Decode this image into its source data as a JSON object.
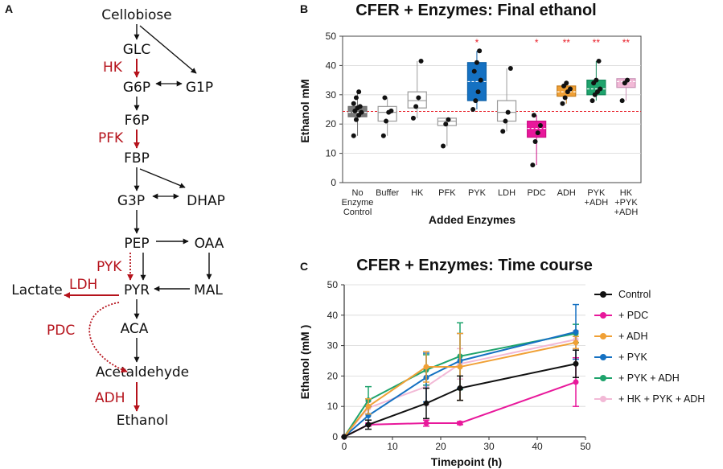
{
  "panels": {
    "a": "A",
    "b": "B",
    "c": "C"
  },
  "colors": {
    "red": "#b5121b",
    "black": "#111111",
    "sig": "#e8212a"
  },
  "pathway": {
    "nodes": {
      "cellobiose": "Cellobiose",
      "glc": "GLC",
      "g6p": "G6P",
      "g1p": "G1P",
      "f6p": "F6P",
      "fbp": "FBP",
      "g3p": "G3P",
      "dhap": "DHAP",
      "pep": "PEP",
      "oaa": "OAA",
      "pyr": "PYR",
      "mal": "MAL",
      "lactate": "Lactate",
      "aca": "ACA",
      "acetaldehyde": "Acetaldehyde",
      "ethanol": "Ethanol"
    },
    "enzymes": {
      "hk": "HK",
      "pfk": "PFK",
      "pyk": "PYK",
      "ldh": "LDH",
      "pdc": "PDC",
      "adh": "ADH"
    }
  },
  "chart_data": [
    {
      "type": "box",
      "title": "CFER + Enzymes: Final ethanol",
      "xlabel": "Added Enzymes",
      "ylabel": "Ethanol mM",
      "ylim": [
        0,
        50
      ],
      "yticks": [
        0,
        10,
        20,
        30,
        40,
        50
      ],
      "reference_line": 24.3,
      "categories": [
        {
          "label": [
            "No",
            "Enzyme",
            "Control"
          ],
          "color": "#6e6e6e",
          "fill": "#7a7a7a",
          "q1": 22.5,
          "median": 24,
          "q3": 26,
          "whisker": [
            16,
            31
          ],
          "points": [
            16,
            21.5,
            23,
            24,
            24.5,
            25.5,
            26,
            27,
            29,
            31
          ],
          "sig": ""
        },
        {
          "label": [
            "Buffer"
          ],
          "color": "#9a9a9a",
          "fill": "none",
          "q1": 21,
          "median": 24,
          "q3": 26,
          "whisker": [
            16,
            29
          ],
          "points": [
            16,
            21,
            24,
            24.5,
            29
          ],
          "sig": ""
        },
        {
          "label": [
            "HK"
          ],
          "color": "#9a9a9a",
          "fill": "none",
          "q1": 25.5,
          "median": 28,
          "q3": 31,
          "whisker": [
            22,
            41.5
          ],
          "points": [
            22,
            26,
            29,
            41.5
          ],
          "sig": ""
        },
        {
          "label": [
            "PFK"
          ],
          "color": "#9a9a9a",
          "fill": "none",
          "q1": 19.5,
          "median": 21,
          "q3": 22,
          "whisker": [
            12.5,
            22
          ],
          "points": [
            12.5,
            20,
            21.5
          ],
          "sig": ""
        },
        {
          "label": [
            "PYK"
          ],
          "color": "#0f62a8",
          "fill": "#1571c2",
          "q1": 28,
          "median": 34.5,
          "q3": 41,
          "whisker": [
            25,
            45
          ],
          "points": [
            25,
            28,
            31,
            35,
            38,
            41,
            45
          ],
          "sig": "*"
        },
        {
          "label": [
            "LDH"
          ],
          "color": "#9a9a9a",
          "fill": "none",
          "q1": 21,
          "median": 24,
          "q3": 28,
          "whisker": [
            17.5,
            39
          ],
          "points": [
            17.5,
            21,
            24,
            39
          ],
          "sig": ""
        },
        {
          "label": [
            "PDC"
          ],
          "color": "#cc0f85",
          "fill": "#e8189b",
          "q1": 15.5,
          "median": 18.5,
          "q3": 21,
          "whisker": [
            6,
            23
          ],
          "points": [
            6,
            14,
            17,
            19.5,
            23
          ],
          "sig": "*"
        },
        {
          "label": [
            "ADH"
          ],
          "color": "#c57d1c",
          "fill": "#f0a035",
          "q1": 29.5,
          "median": 31,
          "q3": 33,
          "whisker": [
            27,
            34
          ],
          "points": [
            27,
            29,
            31,
            32,
            33,
            34
          ],
          "sig": "**"
        },
        {
          "label": [
            "PYK",
            "+ADH"
          ],
          "color": "#14875a",
          "fill": "#1ea36c",
          "q1": 30,
          "median": 32,
          "q3": 35,
          "whisker": [
            28,
            41.5
          ],
          "points": [
            28,
            30,
            31,
            32,
            34,
            35,
            41.5
          ],
          "sig": "**"
        },
        {
          "label": [
            "HK",
            "+PYK",
            "+ADH"
          ],
          "color": "#c992b6",
          "fill": "#f2b9d6",
          "q1": 32.5,
          "median": 34.5,
          "q3": 35.5,
          "whisker": [
            28,
            35.5
          ],
          "points": [
            28,
            34,
            35
          ],
          "sig": "**"
        }
      ]
    },
    {
      "type": "line",
      "title": "CFER + Enzymes: Time course",
      "xlabel": "Timepoint (h)",
      "ylabel": "Ethanol (mM )",
      "xlim": [
        0,
        50
      ],
      "ylim": [
        0,
        50
      ],
      "xticks": [
        0,
        10,
        20,
        30,
        40,
        50
      ],
      "yticks": [
        0,
        10,
        20,
        30,
        40,
        50
      ],
      "x": [
        0,
        5,
        17,
        24,
        48
      ],
      "series": [
        {
          "name": "Control",
          "color": "#111111",
          "values": [
            0,
            4,
            11,
            16,
            24
          ],
          "err": [
            0,
            1.5,
            5,
            4,
            4.5
          ]
        },
        {
          "name": "+ PDC",
          "color": "#e8189b",
          "values": [
            0,
            4,
            4.5,
            4.5,
            18
          ],
          "err": [
            0,
            0.5,
            1,
            0.5,
            8
          ]
        },
        {
          "name": "+ ADH",
          "color": "#f0a035",
          "values": [
            0,
            10,
            23,
            23,
            31
          ],
          "err": [
            0,
            2.5,
            5,
            11,
            2
          ]
        },
        {
          "name": "+ PYK",
          "color": "#1571c2",
          "values": [
            0,
            7,
            19.5,
            25,
            34.5
          ],
          "err": [
            0,
            3,
            8,
            9,
            9
          ]
        },
        {
          "name": "+ PYK + ADH",
          "color": "#1ea36c",
          "values": [
            0,
            12,
            22,
            26.5,
            34
          ],
          "err": [
            0,
            4.5,
            5,
            11,
            3
          ]
        },
        {
          "name": "+ HK  + PYK + ADH",
          "color": "#f2b9d6",
          "values": [
            0,
            9.5,
            16.5,
            24,
            32
          ],
          "err": [
            0,
            2,
            6,
            5,
            3
          ]
        }
      ]
    }
  ]
}
